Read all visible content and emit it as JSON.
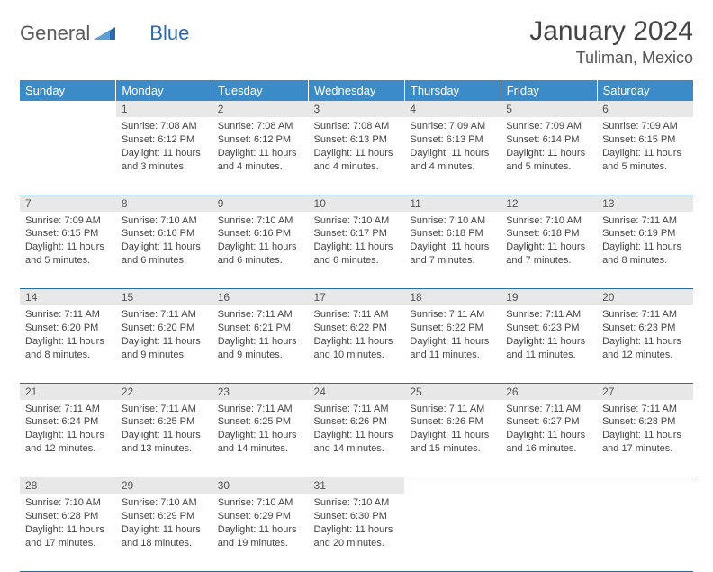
{
  "logo": {
    "text1": "General",
    "text2": "Blue"
  },
  "title": "January 2024",
  "location": "Tuliman, Mexico",
  "colors": {
    "header_bg": "#3b8bc9",
    "header_text": "#ffffff",
    "daynum_bg": "#e8e8e8",
    "border": "#2a6bb0",
    "logo_gray": "#5a5a5a",
    "logo_blue": "#2a6bb0"
  },
  "fonts": {
    "title_size": 30,
    "location_size": 18,
    "dayhead_size": 13,
    "cell_size": 11
  },
  "day_headers": [
    "Sunday",
    "Monday",
    "Tuesday",
    "Wednesday",
    "Thursday",
    "Friday",
    "Saturday"
  ],
  "weeks": [
    [
      null,
      {
        "n": "1",
        "sr": "7:08 AM",
        "ss": "6:12 PM",
        "dl": "11 hours and 3 minutes."
      },
      {
        "n": "2",
        "sr": "7:08 AM",
        "ss": "6:12 PM",
        "dl": "11 hours and 4 minutes."
      },
      {
        "n": "3",
        "sr": "7:08 AM",
        "ss": "6:13 PM",
        "dl": "11 hours and 4 minutes."
      },
      {
        "n": "4",
        "sr": "7:09 AM",
        "ss": "6:13 PM",
        "dl": "11 hours and 4 minutes."
      },
      {
        "n": "5",
        "sr": "7:09 AM",
        "ss": "6:14 PM",
        "dl": "11 hours and 5 minutes."
      },
      {
        "n": "6",
        "sr": "7:09 AM",
        "ss": "6:15 PM",
        "dl": "11 hours and 5 minutes."
      }
    ],
    [
      {
        "n": "7",
        "sr": "7:09 AM",
        "ss": "6:15 PM",
        "dl": "11 hours and 5 minutes."
      },
      {
        "n": "8",
        "sr": "7:10 AM",
        "ss": "6:16 PM",
        "dl": "11 hours and 6 minutes."
      },
      {
        "n": "9",
        "sr": "7:10 AM",
        "ss": "6:16 PM",
        "dl": "11 hours and 6 minutes."
      },
      {
        "n": "10",
        "sr": "7:10 AM",
        "ss": "6:17 PM",
        "dl": "11 hours and 6 minutes."
      },
      {
        "n": "11",
        "sr": "7:10 AM",
        "ss": "6:18 PM",
        "dl": "11 hours and 7 minutes."
      },
      {
        "n": "12",
        "sr": "7:10 AM",
        "ss": "6:18 PM",
        "dl": "11 hours and 7 minutes."
      },
      {
        "n": "13",
        "sr": "7:11 AM",
        "ss": "6:19 PM",
        "dl": "11 hours and 8 minutes."
      }
    ],
    [
      {
        "n": "14",
        "sr": "7:11 AM",
        "ss": "6:20 PM",
        "dl": "11 hours and 8 minutes."
      },
      {
        "n": "15",
        "sr": "7:11 AM",
        "ss": "6:20 PM",
        "dl": "11 hours and 9 minutes."
      },
      {
        "n": "16",
        "sr": "7:11 AM",
        "ss": "6:21 PM",
        "dl": "11 hours and 9 minutes."
      },
      {
        "n": "17",
        "sr": "7:11 AM",
        "ss": "6:22 PM",
        "dl": "11 hours and 10 minutes."
      },
      {
        "n": "18",
        "sr": "7:11 AM",
        "ss": "6:22 PM",
        "dl": "11 hours and 11 minutes."
      },
      {
        "n": "19",
        "sr": "7:11 AM",
        "ss": "6:23 PM",
        "dl": "11 hours and 11 minutes."
      },
      {
        "n": "20",
        "sr": "7:11 AM",
        "ss": "6:23 PM",
        "dl": "11 hours and 12 minutes."
      }
    ],
    [
      {
        "n": "21",
        "sr": "7:11 AM",
        "ss": "6:24 PM",
        "dl": "11 hours and 12 minutes."
      },
      {
        "n": "22",
        "sr": "7:11 AM",
        "ss": "6:25 PM",
        "dl": "11 hours and 13 minutes."
      },
      {
        "n": "23",
        "sr": "7:11 AM",
        "ss": "6:25 PM",
        "dl": "11 hours and 14 minutes."
      },
      {
        "n": "24",
        "sr": "7:11 AM",
        "ss": "6:26 PM",
        "dl": "11 hours and 14 minutes."
      },
      {
        "n": "25",
        "sr": "7:11 AM",
        "ss": "6:26 PM",
        "dl": "11 hours and 15 minutes."
      },
      {
        "n": "26",
        "sr": "7:11 AM",
        "ss": "6:27 PM",
        "dl": "11 hours and 16 minutes."
      },
      {
        "n": "27",
        "sr": "7:11 AM",
        "ss": "6:28 PM",
        "dl": "11 hours and 17 minutes."
      }
    ],
    [
      {
        "n": "28",
        "sr": "7:10 AM",
        "ss": "6:28 PM",
        "dl": "11 hours and 17 minutes."
      },
      {
        "n": "29",
        "sr": "7:10 AM",
        "ss": "6:29 PM",
        "dl": "11 hours and 18 minutes."
      },
      {
        "n": "30",
        "sr": "7:10 AM",
        "ss": "6:29 PM",
        "dl": "11 hours and 19 minutes."
      },
      {
        "n": "31",
        "sr": "7:10 AM",
        "ss": "6:30 PM",
        "dl": "11 hours and 20 minutes."
      },
      null,
      null,
      null
    ]
  ],
  "labels": {
    "sunrise": "Sunrise:",
    "sunset": "Sunset:",
    "daylight": "Daylight:"
  }
}
